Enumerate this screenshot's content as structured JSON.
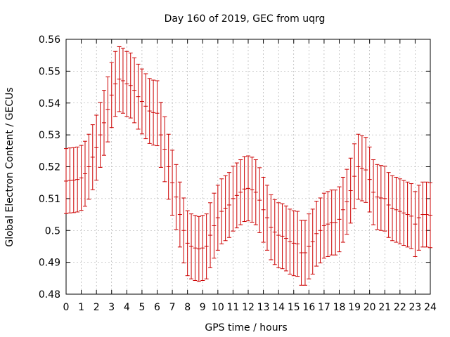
{
  "chart_data": {
    "type": "line",
    "title": "Day 160 of 2019, GEC from uqrg",
    "xlabel": "GPS time / hours",
    "ylabel": "Global Electron Content / GECUs",
    "xlim": [
      0,
      24
    ],
    "ylim": [
      0.48,
      0.56
    ],
    "xticks": [
      "0",
      "1",
      "2",
      "3",
      "4",
      "5",
      "6",
      "7",
      "8",
      "9",
      "10",
      "11",
      "12",
      "13",
      "14",
      "15",
      "16",
      "17",
      "18",
      "19",
      "20",
      "21",
      "22",
      "23",
      "24"
    ],
    "yticks": [
      "0.48",
      "0.49",
      "0.5",
      "0.51",
      "0.52",
      "0.53",
      "0.54",
      "0.55",
      "0.56"
    ],
    "grid": true,
    "error_bar_half_width": 0.0102,
    "series": [
      {
        "color": "#cc0000",
        "x": [
          0,
          0.25,
          0.5,
          0.75,
          1,
          1.25,
          1.5,
          1.75,
          2,
          2.25,
          2.5,
          2.75,
          3,
          3.25,
          3.5,
          3.75,
          4,
          4.25,
          4.5,
          4.75,
          5,
          5.25,
          5.5,
          5.75,
          6,
          6.25,
          6.5,
          6.75,
          7,
          7.25,
          7.5,
          7.75,
          8,
          8.25,
          8.5,
          8.75,
          9,
          9.25,
          9.5,
          9.75,
          10,
          10.25,
          10.5,
          10.75,
          11,
          11.25,
          11.5,
          11.75,
          12,
          12.25,
          12.5,
          12.75,
          13,
          13.25,
          13.5,
          13.75,
          14,
          14.25,
          14.5,
          14.75,
          15,
          15.25,
          15.5,
          15.75,
          16,
          16.25,
          16.5,
          16.75,
          17,
          17.25,
          17.5,
          17.75,
          18,
          18.25,
          18.5,
          18.75,
          19,
          19.25,
          19.5,
          19.75,
          20,
          20.25,
          20.5,
          20.75,
          21,
          21.25,
          21.5,
          21.75,
          22,
          22.25,
          22.5,
          22.75,
          23,
          23.25,
          23.5,
          23.75,
          24
        ],
        "y": [
          0.5155,
          0.5157,
          0.5158,
          0.516,
          0.5165,
          0.5178,
          0.52,
          0.523,
          0.526,
          0.53,
          0.5338,
          0.538,
          0.5425,
          0.546,
          0.5475,
          0.547,
          0.546,
          0.5455,
          0.544,
          0.542,
          0.5405,
          0.539,
          0.5375,
          0.537,
          0.5368,
          0.53,
          0.5255,
          0.52,
          0.515,
          0.5105,
          0.505,
          0.5,
          0.496,
          0.495,
          0.4945,
          0.4942,
          0.4945,
          0.495,
          0.4985,
          0.5015,
          0.504,
          0.506,
          0.507,
          0.508,
          0.51,
          0.511,
          0.512,
          0.513,
          0.5132,
          0.5128,
          0.512,
          0.5095,
          0.5065,
          0.504,
          0.501,
          0.4995,
          0.4985,
          0.4982,
          0.4975,
          0.4965,
          0.496,
          0.4958,
          0.493,
          0.493,
          0.495,
          0.4965,
          0.499,
          0.5,
          0.5015,
          0.502,
          0.5025,
          0.5025,
          0.5035,
          0.5065,
          0.509,
          0.5125,
          0.517,
          0.52,
          0.5195,
          0.519,
          0.516,
          0.512,
          0.5105,
          0.5102,
          0.51,
          0.508,
          0.507,
          0.5065,
          0.506,
          0.5055,
          0.505,
          0.5045,
          0.502,
          0.504,
          0.505,
          0.505,
          0.5048
        ]
      }
    ]
  }
}
